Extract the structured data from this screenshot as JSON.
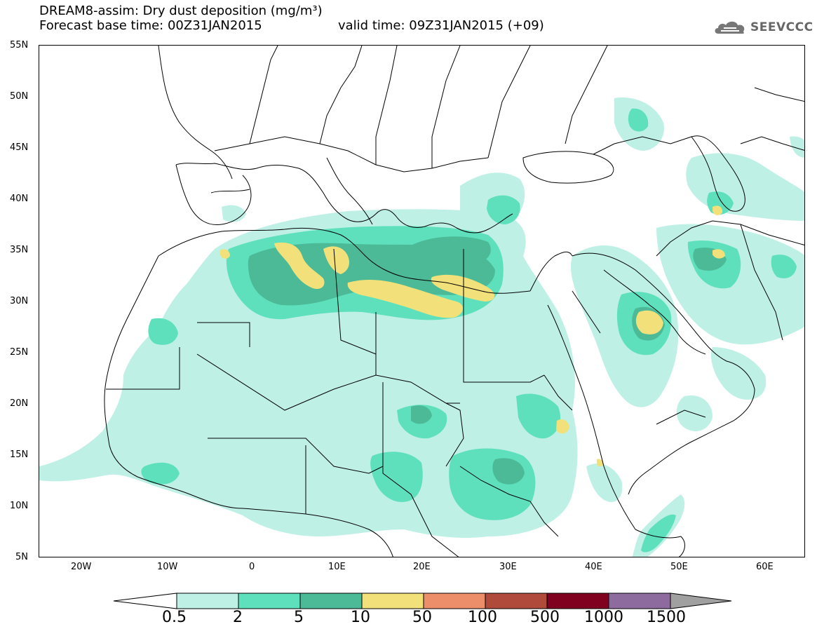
{
  "title": {
    "line1": "DREAM8-assim: Dry dust deposition (mg/m³)",
    "base_time": "Forecast base time: 00Z31JAN2015",
    "valid_time": "valid time: 09Z31JAN2015 (+09)"
  },
  "logo": {
    "text": "SEEVCCC",
    "icon": "cloud-icon"
  },
  "axes": {
    "lat_labels": [
      "55N",
      "50N",
      "45N",
      "40N",
      "35N",
      "30N",
      "25N",
      "20N",
      "15N",
      "10N",
      "5N"
    ],
    "lon_labels": [
      "20W",
      "10W",
      "0",
      "10E",
      "20E",
      "30E",
      "40E",
      "50E",
      "60E"
    ]
  },
  "colorbar": {
    "labels": [
      "0.5",
      "2",
      "5",
      "10",
      "50",
      "100",
      "500",
      "1000",
      "1500"
    ],
    "colors": [
      "#bff0e6",
      "#5fe0bd",
      "#4cba96",
      "#f2e17a",
      "#eb8e69",
      "#b04a3b",
      "#800020",
      "#8e6b9e",
      "#a0a0a0"
    ]
  }
}
